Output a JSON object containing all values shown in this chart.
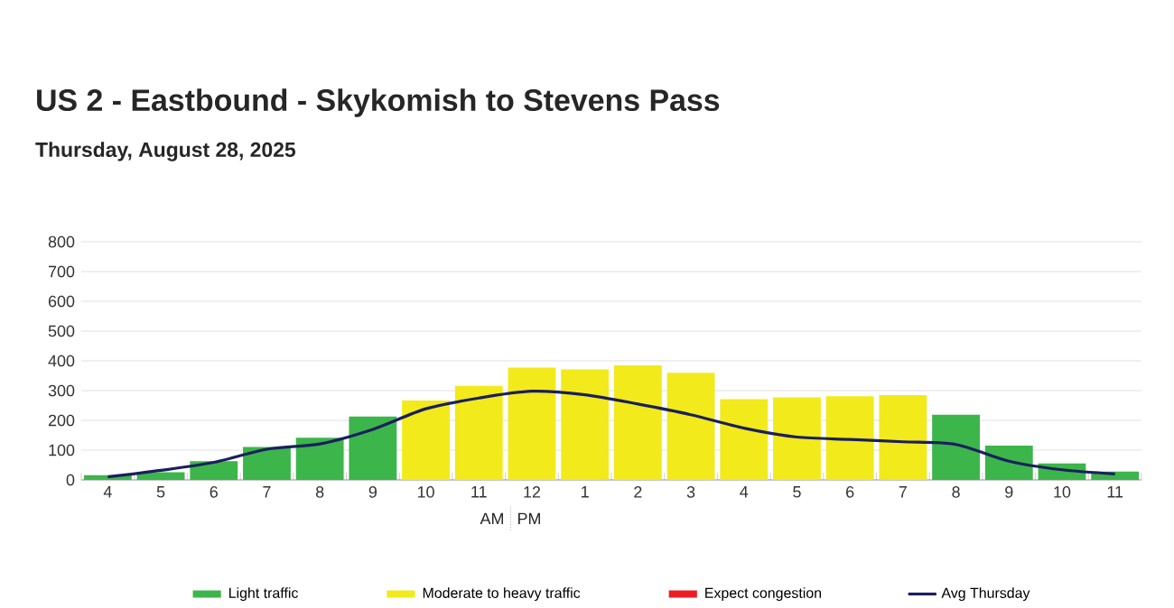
{
  "chart_data": {
    "type": "bar",
    "title": "US 2 - Eastbound - Skykomish to Stevens Pass",
    "subtitle": "Thursday, August 28, 2025",
    "categories": [
      "4",
      "5",
      "6",
      "7",
      "8",
      "9",
      "10",
      "11",
      "12",
      "1",
      "2",
      "3",
      "4",
      "5",
      "6",
      "7",
      "8",
      "9",
      "10",
      "11"
    ],
    "stacked": true,
    "series": [
      {
        "name": "Light traffic",
        "color": "#3cb54a",
        "values": [
          16,
          26,
          63,
          111,
          142,
          213,
          null,
          null,
          null,
          null,
          null,
          null,
          null,
          null,
          null,
          null,
          219,
          115,
          55,
          28
        ]
      },
      {
        "name": "Moderate to heavy traffic",
        "color": "#f2ea1b",
        "values": [
          null,
          null,
          null,
          null,
          null,
          null,
          267,
          316,
          377,
          371,
          385,
          360,
          271,
          277,
          281,
          285,
          null,
          null,
          null,
          null
        ]
      },
      {
        "name": "Expect congestion",
        "color": "#ed1c24",
        "values": [
          null,
          null,
          null,
          null,
          null,
          null,
          null,
          null,
          null,
          null,
          null,
          null,
          null,
          null,
          null,
          null,
          null,
          null,
          null,
          null
        ]
      },
      {
        "name": "Avg Thursday",
        "type": "line",
        "color": "#1a1f5e",
        "values": [
          10,
          32,
          59,
          103,
          121,
          170,
          239,
          275,
          298,
          286,
          255,
          219,
          174,
          144,
          136,
          128,
          119,
          63,
          34,
          20
        ]
      }
    ],
    "ylim": [
      0,
      800
    ],
    "yticks": [
      0,
      100,
      200,
      300,
      400,
      500,
      600,
      700,
      800
    ],
    "grid": "y",
    "legend": "bottom",
    "marker": "none",
    "line_style": "solid",
    "annotations": [
      "AM",
      "PM"
    ]
  }
}
